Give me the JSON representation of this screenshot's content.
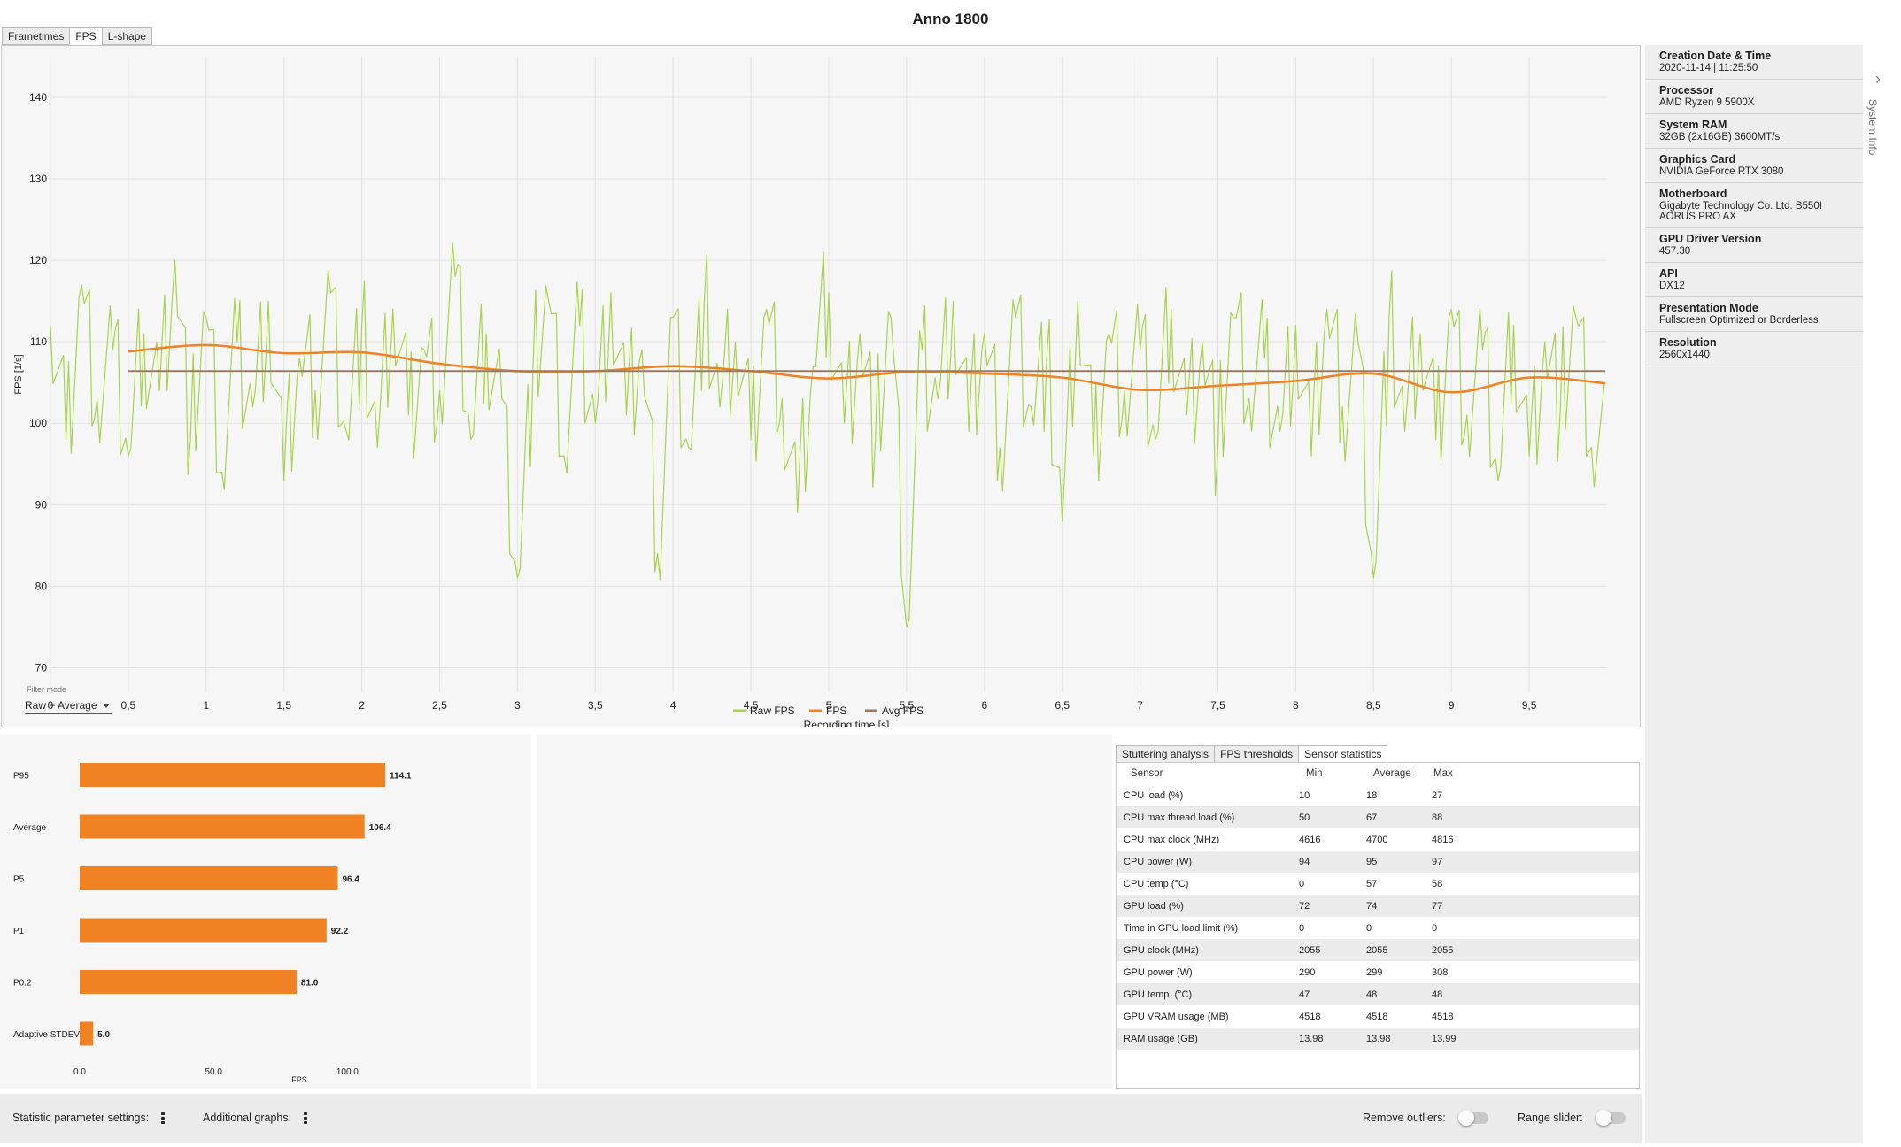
{
  "window": {
    "title": "Anno 1800"
  },
  "tabs": [
    {
      "label": "Frametimes",
      "active": false
    },
    {
      "label": "FPS",
      "active": true
    },
    {
      "label": "L-shape",
      "active": false
    }
  ],
  "filter": {
    "label": "Filter mode",
    "value": "Raw + Average"
  },
  "chart_data": [
    {
      "type": "line",
      "title": "",
      "xlabel": "Recording time [s]",
      "ylabel": "FPS [1/s]",
      "xlim": [
        0,
        10
      ],
      "ylim": [
        67,
        145
      ],
      "xticks": [
        "0",
        "0,5",
        "1",
        "1,5",
        "2",
        "2,5",
        "3",
        "3,5",
        "4",
        "4,5",
        "5",
        "5,5",
        "6",
        "6,5",
        "7",
        "7,5",
        "8",
        "8,5",
        "9",
        "9,5"
      ],
      "yticks": [
        "70",
        "80",
        "90",
        "100",
        "110",
        "120",
        "130",
        "140"
      ],
      "grid": true,
      "legend": "bottom-center",
      "series": [
        {
          "name": "Raw FPS",
          "color": "#a9d34c",
          "x": [
            0.0,
            0.1,
            0.2,
            0.3,
            0.4,
            0.5,
            0.6,
            0.7,
            0.8,
            0.9,
            1.0,
            1.1,
            1.2,
            1.3,
            1.4,
            1.5,
            1.6,
            1.7,
            1.8,
            1.9,
            2.0,
            2.1,
            2.2,
            2.3,
            2.4,
            2.5,
            2.6,
            2.7,
            2.8,
            2.9,
            3.0,
            3.1,
            3.2,
            3.3,
            3.4,
            3.5,
            3.6,
            3.7,
            3.8,
            3.9,
            4.0,
            4.1,
            4.2,
            4.3,
            4.4,
            4.5,
            4.6,
            4.7,
            4.8,
            4.9,
            5.0,
            5.1,
            5.2,
            5.3,
            5.4,
            5.5,
            5.6,
            5.7,
            5.8,
            5.9,
            6.0,
            6.1,
            6.2,
            6.3,
            6.4,
            6.5,
            6.6,
            6.7,
            6.8,
            6.9,
            7.0,
            7.1,
            7.2,
            7.3,
            7.4,
            7.5,
            7.6,
            7.7,
            7.8,
            7.9,
            8.0,
            8.1,
            8.2,
            8.3,
            8.4,
            8.5,
            8.6,
            8.7,
            8.8,
            8.9,
            9.0,
            9.1,
            9.2,
            9.3,
            9.4,
            9.5,
            9.6,
            9.7,
            9.8,
            9.9
          ],
          "values": [
            112,
            98,
            117,
            103,
            109,
            96,
            111,
            104,
            120,
            98,
            113,
            94,
            110,
            102,
            115,
            93,
            108,
            104,
            116,
            99,
            112,
            97,
            114,
            101,
            109,
            104,
            118,
            98,
            111,
            103,
            81,
            107,
            115,
            96,
            112,
            100,
            116,
            101,
            109,
            84,
            113,
            97,
            115,
            102,
            110,
            98,
            114,
            103,
            89,
            107,
            116,
            100,
            111,
            98,
            113,
            75,
            109,
            103,
            115,
            99,
            111,
            97,
            113,
            102,
            108,
            88,
            115,
            96,
            111,
            104,
            109,
            98,
            114,
            101,
            110,
            97,
            113,
            103,
            108,
            99,
            112,
            96,
            114,
            102,
            110,
            81,
            113,
            99,
            111,
            98,
            114,
            101,
            109,
            93,
            112,
            96,
            110,
            102,
            113,
            97
          ]
        },
        {
          "name": "FPS",
          "color": "#f08224",
          "x": [
            0.5,
            1.0,
            1.5,
            2.0,
            2.5,
            3.0,
            3.5,
            4.0,
            4.5,
            5.0,
            5.5,
            6.0,
            6.5,
            7.0,
            7.5,
            8.0,
            8.5,
            9.0,
            9.5,
            9.99
          ],
          "values": [
            108.8,
            109.6,
            108.6,
            108.7,
            107.3,
            106.4,
            106.4,
            107.0,
            106.4,
            105.5,
            106.3,
            106.1,
            105.6,
            104.1,
            104.6,
            105.2,
            106.1,
            103.8,
            105.6,
            104.9
          ]
        },
        {
          "name": "Avg FPS",
          "color": "#9a7a60",
          "x": [
            0.5,
            9.99
          ],
          "values": [
            106.4,
            106.4
          ]
        }
      ]
    },
    {
      "type": "bar",
      "orientation": "horizontal",
      "title": "",
      "xlabel": "FPS",
      "xlim": [
        0,
        115
      ],
      "xticks": [
        "0.0",
        "50.0",
        "100.0"
      ],
      "categories": [
        "P95",
        "Average",
        "P5",
        "P1",
        "P0.2",
        "Adaptive STDEV"
      ],
      "values": [
        114.1,
        106.4,
        96.4,
        92.2,
        81.0,
        5.0
      ],
      "value_labels": [
        "114.1",
        "106.4",
        "96.4",
        "92.2",
        "81.0",
        "5.0"
      ],
      "color": "#f08224"
    }
  ],
  "system_info": {
    "toggle_label": "System Info",
    "items": [
      {
        "label": "Creation Date & Time",
        "value": "2020-11-14  |  11:25:50"
      },
      {
        "label": "Processor",
        "value": "AMD Ryzen 9 5900X"
      },
      {
        "label": "System RAM",
        "value": "32GB (2x16GB) 3600MT/s"
      },
      {
        "label": "Graphics Card",
        "value": "NVIDIA GeForce RTX 3080"
      },
      {
        "label": "Motherboard",
        "value": "Gigabyte Technology Co. Ltd. B550I AORUS PRO AX"
      },
      {
        "label": "GPU Driver Version",
        "value": "457.30"
      },
      {
        "label": "API",
        "value": "DX12"
      },
      {
        "label": "Presentation Mode",
        "value": "Fullscreen Optimized or Borderless"
      },
      {
        "label": "Resolution",
        "value": "2560x1440"
      }
    ]
  },
  "analysis_tabs": [
    {
      "label": "Stuttering analysis",
      "active": false
    },
    {
      "label": "FPS thresholds",
      "active": false
    },
    {
      "label": "Sensor statistics",
      "active": true
    }
  ],
  "sensor_table": {
    "headers": [
      "Sensor",
      "Min",
      "Average",
      "Max"
    ],
    "rows": [
      [
        "CPU load (%)",
        "10",
        "18",
        "27"
      ],
      [
        "CPU max thread load (%)",
        "50",
        "67",
        "88"
      ],
      [
        "CPU max clock (MHz)",
        "4616",
        "4700",
        "4816"
      ],
      [
        "CPU power (W)",
        "94",
        "95",
        "97"
      ],
      [
        "CPU temp (°C)",
        "0",
        "57",
        "58"
      ],
      [
        "GPU load (%)",
        "72",
        "74",
        "77"
      ],
      [
        "Time in GPU load limit (%)",
        "0",
        "0",
        "0"
      ],
      [
        "GPU clock (MHz)",
        "2055",
        "2055",
        "2055"
      ],
      [
        "GPU power (W)",
        "290",
        "299",
        "308"
      ],
      [
        "GPU temp. (°C)",
        "47",
        "48",
        "48"
      ],
      [
        "GPU VRAM usage (MB)",
        "4518",
        "4518",
        "4518"
      ],
      [
        "RAM usage (GB)",
        "13.98",
        "13.98",
        "13.99"
      ]
    ]
  },
  "bottom_bar": {
    "stat_settings_label": "Statistic parameter settings:",
    "additional_graphs_label": "Additional graphs:",
    "remove_outliers_label": "Remove outliers:",
    "range_slider_label": "Range slider:",
    "remove_outliers_on": false,
    "range_slider_on": false
  }
}
